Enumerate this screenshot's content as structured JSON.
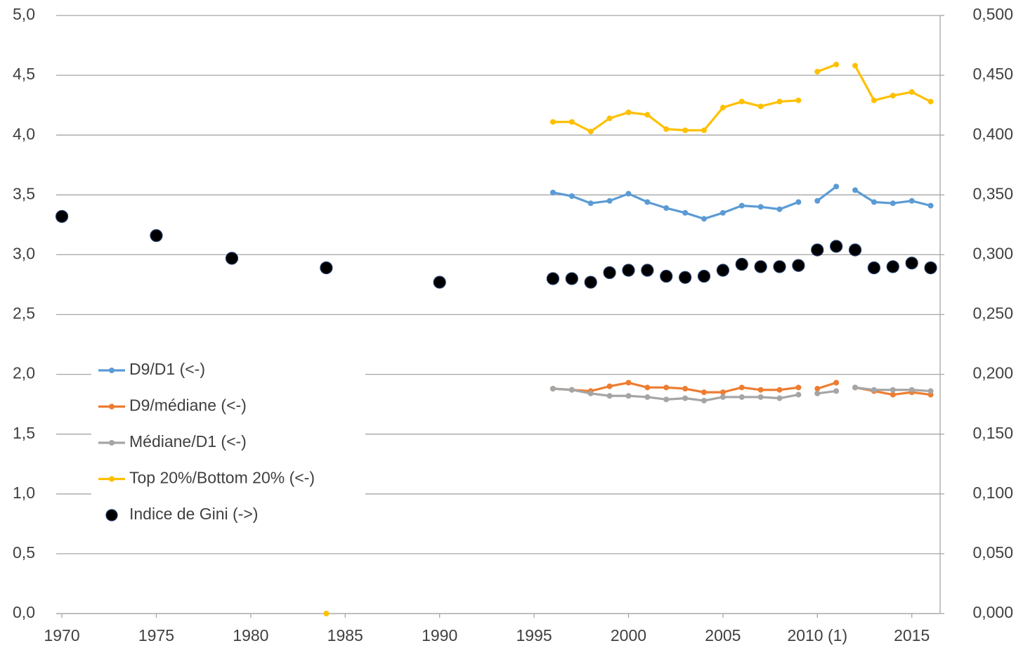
{
  "chart_data": {
    "type": "line",
    "xlim": [
      1969.7,
      2016.5
    ],
    "xticks": [
      1970,
      1975,
      1980,
      1985,
      1990,
      1995,
      2000,
      2005,
      {
        "value": 2010,
        "label": "2010 (1)"
      },
      2015
    ],
    "ylim": [
      0,
      5
    ],
    "yticks": [
      {
        "value": 0,
        "label": "0,0"
      },
      {
        "value": 0.5,
        "label": "0,5"
      },
      {
        "value": 1,
        "label": "1,0"
      },
      {
        "value": 1.5,
        "label": "1,5"
      },
      {
        "value": 2,
        "label": "2,0"
      },
      {
        "value": 2.5,
        "label": "2,5"
      },
      {
        "value": 3,
        "label": "3,0"
      },
      {
        "value": 3.5,
        "label": "3,5"
      },
      {
        "value": 4,
        "label": "4,0"
      },
      {
        "value": 4.5,
        "label": "4,5"
      },
      {
        "value": 5,
        "label": "5,0"
      }
    ],
    "y2lim": [
      0,
      0.5
    ],
    "y2ticks": [
      {
        "value": 0,
        "label": "0,000"
      },
      {
        "value": 0.05,
        "label": "0,050"
      },
      {
        "value": 0.1,
        "label": "0,100"
      },
      {
        "value": 0.15,
        "label": "0,150"
      },
      {
        "value": 0.2,
        "label": "0,200"
      },
      {
        "value": 0.25,
        "label": "0,250"
      },
      {
        "value": 0.3,
        "label": "0,300"
      },
      {
        "value": 0.35,
        "label": "0,350"
      },
      {
        "value": 0.4,
        "label": "0,400"
      },
      {
        "value": 0.45,
        "label": "0,450"
      },
      {
        "value": 0.5,
        "label": "0,500"
      }
    ],
    "grid": true,
    "legend": "left",
    "series": [
      {
        "name": "D9/D1 (<-)",
        "color": "#5b9bd5",
        "type": "line",
        "x": [
          1996,
          1997,
          1998,
          1999,
          2000,
          2001,
          2002,
          2003,
          2004,
          2005,
          2006,
          2007,
          2008,
          2009,
          null,
          2010,
          2011,
          null,
          2012,
          2013,
          2014,
          2015,
          2016
        ],
        "values": [
          3.52,
          3.49,
          3.43,
          3.45,
          3.51,
          3.44,
          3.39,
          3.35,
          3.3,
          3.35,
          3.41,
          3.4,
          3.38,
          3.44,
          null,
          3.45,
          3.57,
          null,
          3.54,
          3.44,
          3.43,
          3.45,
          3.41
        ]
      },
      {
        "name": "D9/médiane (<-)",
        "color": "#ed7d31",
        "type": "line",
        "x": [
          1996,
          1997,
          1998,
          1999,
          2000,
          2001,
          2002,
          2003,
          2004,
          2005,
          2006,
          2007,
          2008,
          2009,
          null,
          2010,
          2011,
          null,
          2012,
          2013,
          2014,
          2015,
          2016
        ],
        "values": [
          1.88,
          1.87,
          1.86,
          1.9,
          1.93,
          1.89,
          1.89,
          1.88,
          1.85,
          1.85,
          1.89,
          1.87,
          1.87,
          1.89,
          null,
          1.88,
          1.93,
          null,
          1.89,
          1.86,
          1.83,
          1.85,
          1.83
        ]
      },
      {
        "name": "Médiane/D1 (<-)",
        "color": "#a5a5a5",
        "type": "line",
        "x": [
          1996,
          1997,
          1998,
          1999,
          2000,
          2001,
          2002,
          2003,
          2004,
          2005,
          2006,
          2007,
          2008,
          2009,
          null,
          2010,
          2011,
          null,
          2012,
          2013,
          2014,
          2015,
          2016
        ],
        "values": [
          1.88,
          1.87,
          1.84,
          1.82,
          1.82,
          1.81,
          1.79,
          1.8,
          1.78,
          1.81,
          1.81,
          1.81,
          1.8,
          1.83,
          null,
          1.84,
          1.86,
          null,
          1.89,
          1.87,
          1.87,
          1.87,
          1.86
        ]
      },
      {
        "name": "Top 20%/Bottom 20% (<-)",
        "color": "#ffc000",
        "type": "line",
        "x": [
          1984,
          null,
          1996,
          1997,
          1998,
          1999,
          2000,
          2001,
          2002,
          2003,
          2004,
          2005,
          2006,
          2007,
          2008,
          2009,
          null,
          2010,
          2011,
          null,
          2012,
          2013,
          2014,
          2015,
          2016
        ],
        "values": [
          0,
          null,
          4.11,
          4.11,
          4.03,
          4.14,
          4.19,
          4.17,
          4.05,
          4.04,
          4.04,
          4.23,
          4.28,
          4.24,
          4.28,
          4.29,
          null,
          4.53,
          4.59,
          null,
          4.58,
          4.29,
          4.33,
          4.36,
          4.28
        ]
      },
      {
        "name": "Indice de Gini (->)",
        "color": "#000000",
        "type": "scatter",
        "axis": "y2",
        "x": [
          1970,
          1975,
          1979,
          1984,
          1990,
          1996,
          1997,
          1998,
          1999,
          2000,
          2001,
          2002,
          2003,
          2004,
          2005,
          2006,
          2007,
          2008,
          2009,
          2010,
          2011,
          2012,
          2013,
          2014,
          2015,
          2016
        ],
        "values": [
          0.332,
          0.316,
          0.297,
          0.289,
          0.277,
          0.28,
          0.28,
          0.277,
          0.285,
          0.287,
          0.287,
          0.282,
          0.281,
          0.282,
          0.287,
          0.292,
          0.29,
          0.29,
          0.291,
          0.304,
          0.307,
          0.304,
          0.289,
          0.29,
          0.293,
          0.289
        ]
      }
    ]
  }
}
